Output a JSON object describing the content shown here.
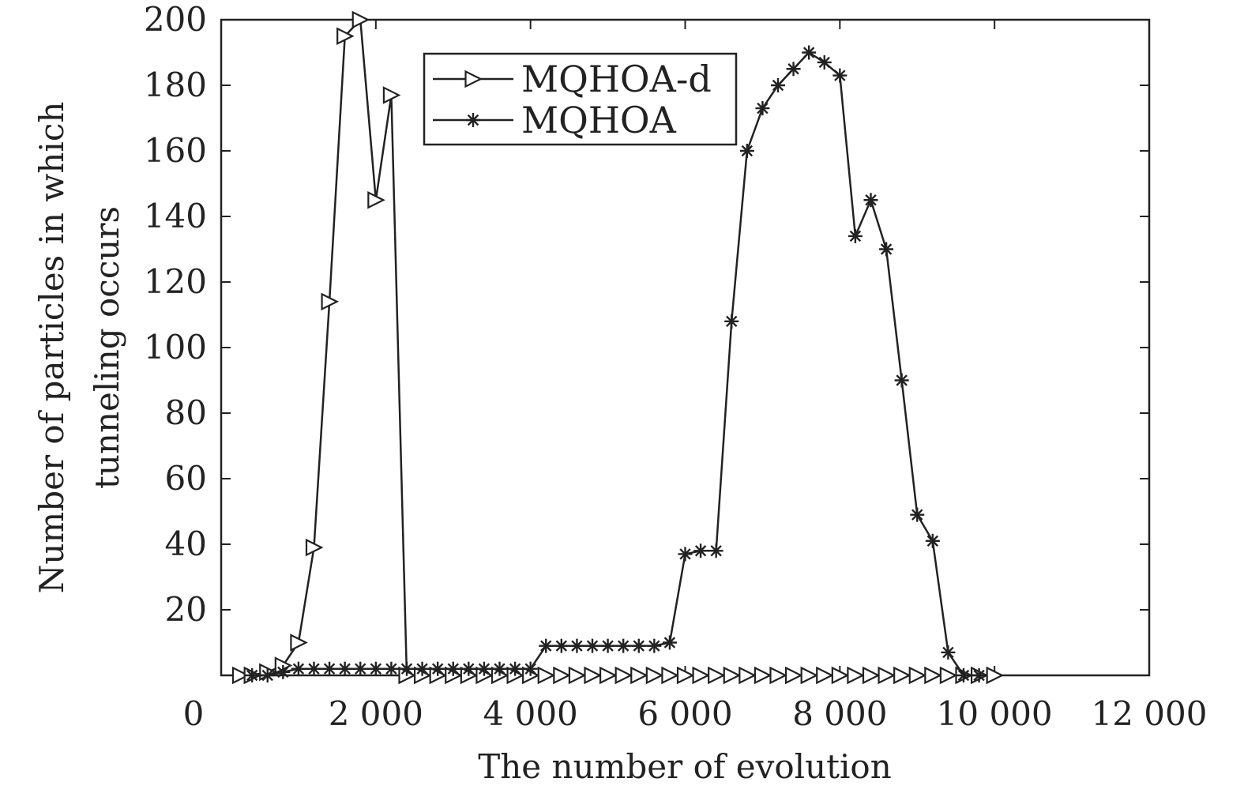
{
  "chart_data": {
    "type": "line",
    "title": "",
    "xlabel": "The number of evolution",
    "ylabel": [
      "Number of particles in which",
      "tunneling occurs"
    ],
    "xlim": [
      0,
      12000
    ],
    "ylim": [
      0,
      200
    ],
    "xticks": [
      0,
      2000,
      4000,
      6000,
      8000,
      10000,
      12000
    ],
    "xtick_labels": [
      "0",
      "2 000",
      "4 000",
      "6 000",
      "8 000",
      "10 000",
      "12 000"
    ],
    "yticks": [
      20,
      40,
      60,
      80,
      100,
      120,
      140,
      160,
      180,
      200
    ],
    "ytick_labels": [
      "20",
      "40",
      "60",
      "80",
      "100",
      "120",
      "140",
      "160",
      "180",
      "200"
    ],
    "grid": false,
    "legend": {
      "position": "top-center",
      "entries": [
        "MQHOA-d",
        "MQHOA"
      ]
    },
    "colors": {
      "line": "#222222",
      "axis": "#222222",
      "background": "#ffffff"
    },
    "series": [
      {
        "name": "MQHOA-d",
        "marker": "triangle-right",
        "x": [
          250,
          400,
          600,
          800,
          1000,
          1200,
          1400,
          1600,
          1800,
          2000,
          2200,
          2400,
          2600,
          2800,
          3000,
          3200,
          3400,
          3600,
          3800,
          4000,
          4200,
          4400,
          4600,
          4800,
          5000,
          5200,
          5400,
          5600,
          5800,
          6000,
          6200,
          6400,
          6600,
          6800,
          7000,
          7200,
          7400,
          7600,
          7800,
          8000,
          8200,
          8400,
          8600,
          8800,
          9000,
          9200,
          9400,
          9600,
          9800,
          10000
        ],
        "y": [
          0,
          0,
          1,
          3,
          10,
          39,
          114,
          195,
          200,
          145,
          177,
          0,
          0,
          0,
          0,
          0,
          0,
          0,
          0,
          0,
          0,
          0,
          0,
          0,
          0,
          0,
          0,
          0,
          0,
          0,
          0,
          0,
          0,
          0,
          0,
          0,
          0,
          0,
          0,
          0,
          0,
          0,
          0,
          0,
          0,
          0,
          0,
          0,
          0,
          0
        ]
      },
      {
        "name": "MQHOA",
        "marker": "asterisk",
        "x": [
          400,
          600,
          800,
          1000,
          1200,
          1400,
          1600,
          1800,
          2000,
          2200,
          2400,
          2600,
          2800,
          3000,
          3200,
          3400,
          3600,
          3800,
          4000,
          4200,
          4400,
          4600,
          4800,
          5000,
          5200,
          5400,
          5600,
          5800,
          6000,
          6200,
          6400,
          6600,
          6800,
          7000,
          7200,
          7400,
          7600,
          7800,
          8000,
          8200,
          8400,
          8600,
          8800,
          9000,
          9200,
          9400,
          9600,
          9800
        ],
        "y": [
          0,
          0,
          1,
          2,
          2,
          2,
          2,
          2,
          2,
          2,
          2,
          2,
          2,
          2,
          2,
          2,
          2,
          2,
          2,
          9,
          9,
          9,
          9,
          9,
          9,
          9,
          9,
          10,
          37,
          38,
          38,
          108,
          160,
          173,
          180,
          185,
          190,
          187,
          183,
          134,
          145,
          130,
          90,
          49,
          41,
          7,
          0,
          0
        ]
      }
    ]
  }
}
